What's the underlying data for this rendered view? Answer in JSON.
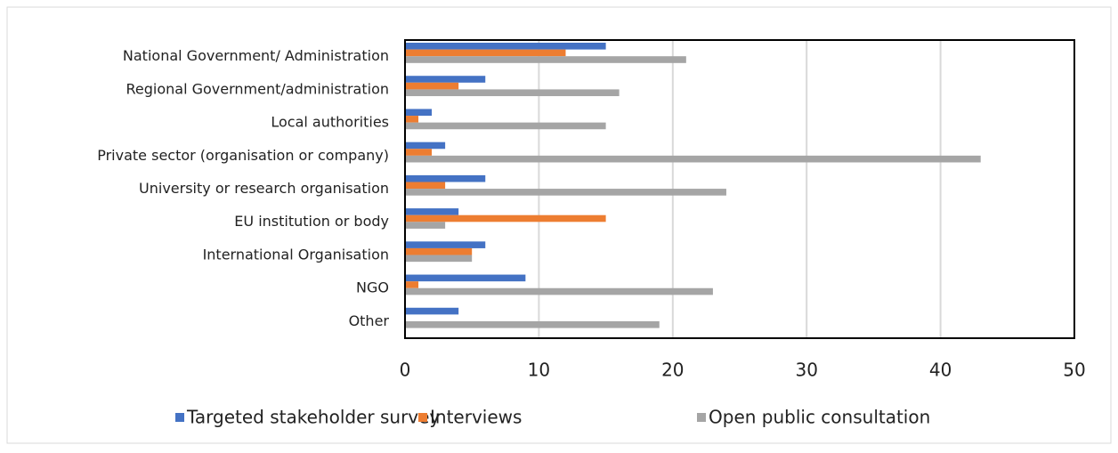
{
  "chart_data": {
    "type": "bar",
    "orientation": "horizontal",
    "categories": [
      "National Government/ Administration",
      "Regional Government/administration",
      "Local authorities",
      "Private sector (organisation or company)",
      "University or research organisation",
      "EU institution or body",
      "International Organisation",
      "NGO",
      "Other"
    ],
    "series": [
      {
        "name": "Targeted stakeholder survey",
        "color": "#4472c4",
        "values": [
          15,
          6,
          2,
          3,
          6,
          4,
          6,
          9,
          4
        ]
      },
      {
        "name": "Interviews",
        "color": "#ed7d31",
        "values": [
          12,
          4,
          1,
          2,
          3,
          15,
          5,
          1,
          0
        ]
      },
      {
        "name": "Open public consultation",
        "color": "#a5a5a5",
        "values": [
          21,
          16,
          15,
          43,
          24,
          3,
          5,
          23,
          19
        ]
      }
    ],
    "xlim": [
      0,
      50
    ],
    "xticks": [
      0,
      10,
      20,
      30,
      40,
      50
    ],
    "grid": true,
    "legend": "bottom"
  }
}
